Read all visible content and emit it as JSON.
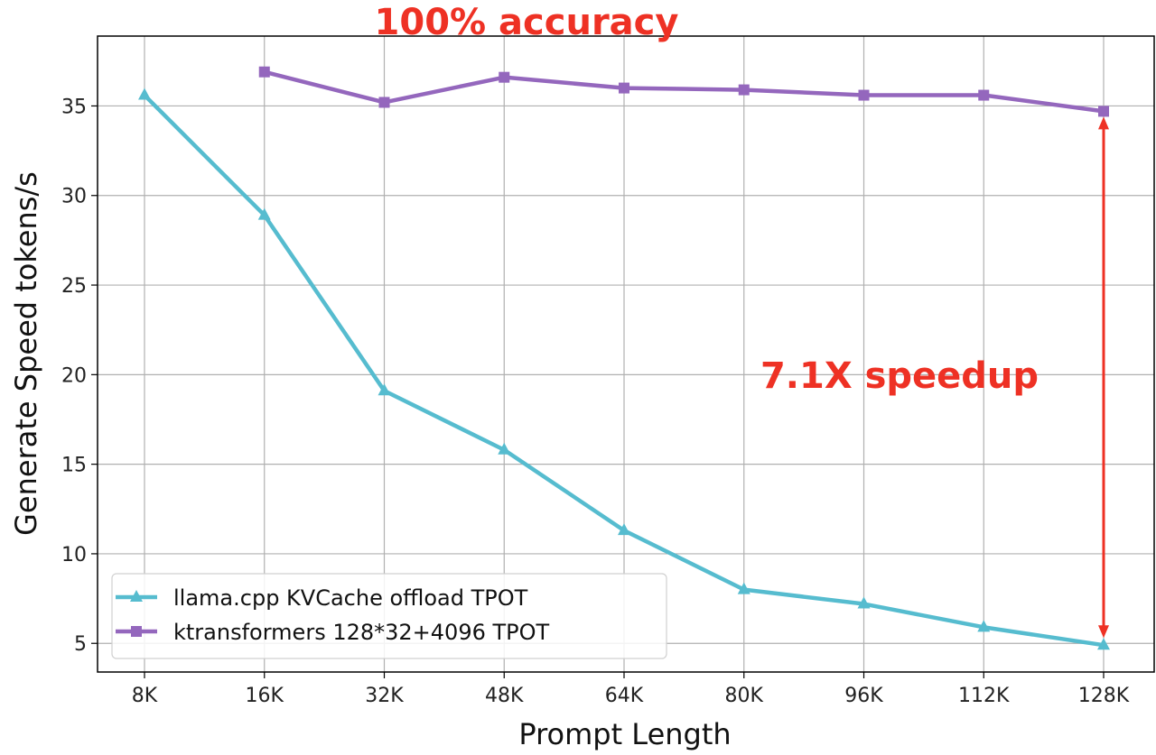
{
  "chart_data": {
    "type": "line",
    "title": "100% accuracy",
    "xlabel": "Prompt Length",
    "ylabel": "Generate Speed tokens/s",
    "categories": [
      "8K",
      "16K",
      "32K",
      "48K",
      "64K",
      "80K",
      "96K",
      "112K",
      "128K"
    ],
    "ylim": [
      3.4,
      38.9
    ],
    "yticks": [
      5,
      10,
      15,
      20,
      25,
      30,
      35
    ],
    "grid": true,
    "legend_position": "bottom-left",
    "series": [
      {
        "name": "llama.cpp KVCache offload TPOT",
        "color": "#56bccf",
        "marker": "triangle",
        "values": [
          35.6,
          28.9,
          19.1,
          15.8,
          11.3,
          8.0,
          7.2,
          5.9,
          4.9
        ]
      },
      {
        "name": "ktransformers 128*32+4096 TPOT",
        "color": "#9467bd",
        "marker": "square",
        "values": [
          null,
          36.9,
          35.2,
          36.6,
          36.0,
          35.9,
          35.6,
          35.6,
          34.7
        ]
      }
    ],
    "annotations": [
      {
        "text": "7.1X speedup",
        "color": "#ee3124",
        "arrow": "double-headed vertical at 128K between series"
      }
    ]
  }
}
